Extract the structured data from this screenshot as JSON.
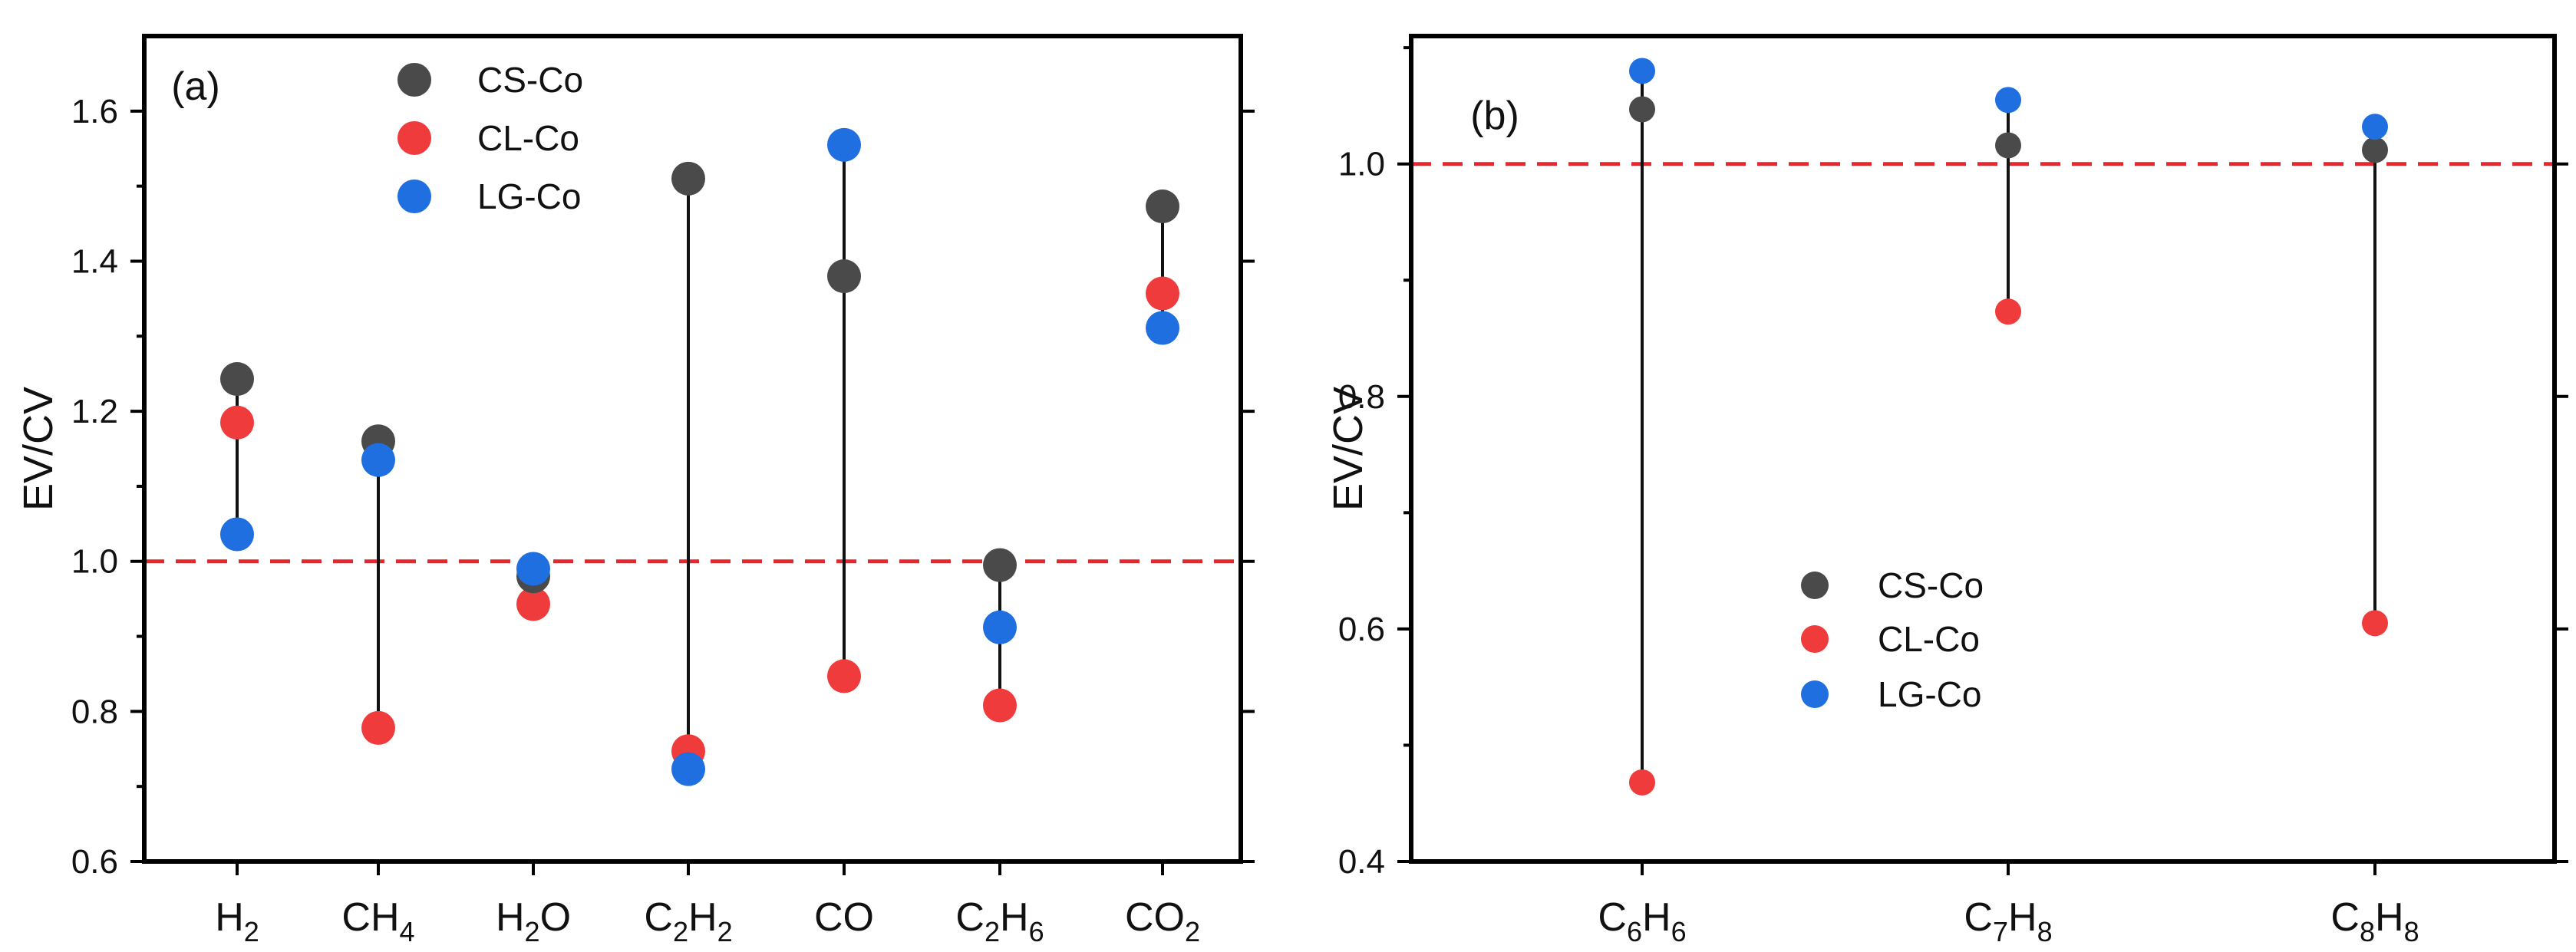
{
  "chart_data": [
    {
      "type": "scatter",
      "panel_label": "(a)",
      "ylabel": "EV/CV",
      "ylim": [
        0.6,
        1.7
      ],
      "yticks": [
        0.6,
        0.8,
        1.0,
        1.2,
        1.4,
        1.6
      ],
      "ytick_labels": [
        "0.6",
        "0.8",
        "1.0",
        "1.2",
        "1.4",
        "1.6"
      ],
      "categories": [
        {
          "base": "H",
          "sub": "2"
        },
        {
          "base": "CH",
          "sub": "4"
        },
        {
          "base": "H",
          "sub": "2",
          "tail": "O"
        },
        {
          "base": "C",
          "sub": "2",
          "base2": "H",
          "sub2": "2"
        },
        {
          "base": "CO"
        },
        {
          "base": "C",
          "sub": "2",
          "base2": "H",
          "sub2": "6"
        },
        {
          "base": "CO",
          "sub": "2"
        }
      ],
      "series": [
        {
          "name": "CS-Co",
          "values": [
            1.243,
            1.16,
            0.98,
            1.51,
            1.38,
            0.995,
            1.473
          ]
        },
        {
          "name": "CL-Co",
          "values": [
            1.185,
            0.778,
            0.943,
            0.747,
            0.847,
            0.808,
            1.357
          ]
        },
        {
          "name": "LG-Co",
          "values": [
            1.036,
            1.135,
            0.99,
            0.723,
            1.555,
            0.912,
            1.311
          ]
        }
      ],
      "reference_line": 1.0,
      "legend_position": "top-left"
    },
    {
      "type": "scatter",
      "panel_label": "(b)",
      "ylabel": "EV/CV",
      "ylim": [
        0.4,
        1.11
      ],
      "yticks": [
        0.4,
        0.6,
        0.8,
        1.0
      ],
      "ytick_labels": [
        "0.4",
        "0.6",
        "0.8",
        "1.0"
      ],
      "categories": [
        {
          "base": "C",
          "sub": "6",
          "base2": "H",
          "sub2": "6"
        },
        {
          "base": "C",
          "sub": "7",
          "base2": "H",
          "sub2": "8"
        },
        {
          "base": "C",
          "sub": "8",
          "base2": "H",
          "sub2": "8"
        }
      ],
      "series": [
        {
          "name": "CS-Co",
          "values": [
            1.047,
            1.016,
            1.012
          ]
        },
        {
          "name": "CL-Co",
          "values": [
            0.468,
            0.873,
            0.605
          ]
        },
        {
          "name": "LG-Co",
          "values": [
            1.08,
            1.055,
            1.032
          ]
        }
      ],
      "reference_line": 1.0,
      "legend_position": "center"
    }
  ],
  "colors": {
    "CS-Co": "#4a4a4a",
    "CL-Co": "#ef3b3b",
    "LG-Co": "#1f6fe0",
    "reference": "#e8272d",
    "stem": "#111111"
  }
}
